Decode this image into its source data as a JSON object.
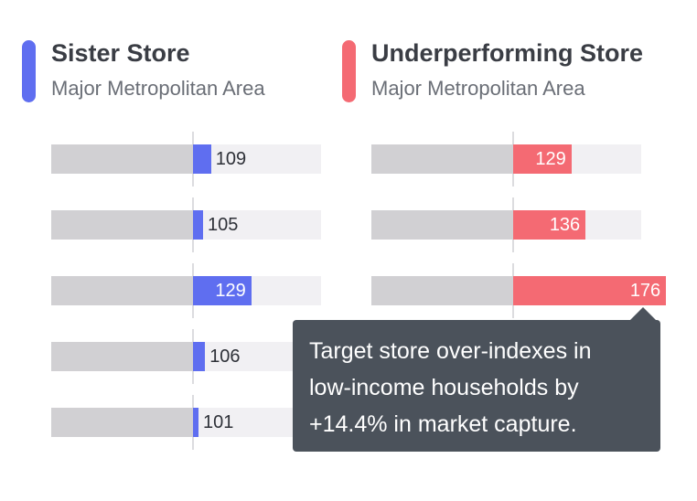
{
  "chart_data": [
    {
      "type": "bar",
      "title": "Sister Store",
      "subtitle": "Major Metropolitan Area",
      "color": "#5f6ef0",
      "baseline": 100,
      "values": [
        109,
        105,
        129,
        106,
        101
      ],
      "value_labels": [
        "109",
        "105",
        "129",
        "106",
        "101"
      ]
    },
    {
      "type": "bar",
      "title": "Underperforming Store",
      "subtitle": "Major Metropolitan Area",
      "color": "#f46a73",
      "baseline": 100,
      "values": [
        129,
        136,
        176
      ],
      "value_labels": [
        "129",
        "136",
        "176"
      ]
    }
  ],
  "tooltip": {
    "lines": [
      "Target store over-indexes in",
      "low-income households by",
      "+14.4% in market capture."
    ]
  }
}
